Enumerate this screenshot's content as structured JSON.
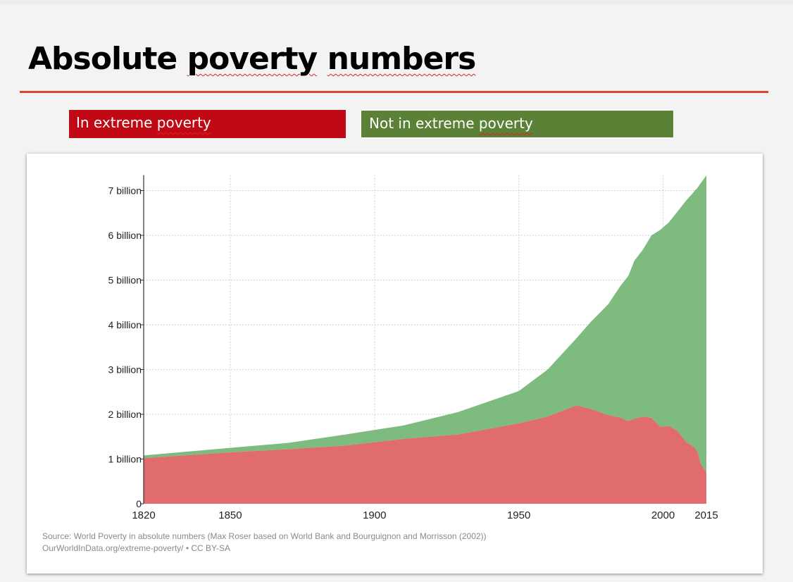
{
  "slide": {
    "title_words": [
      "Absolute",
      "poverty",
      "numbers"
    ],
    "legend": [
      {
        "label_words": [
          "In extreme",
          "poverty"
        ],
        "color": "#c00914"
      },
      {
        "label_words": [
          "Not in extreme",
          "poverty"
        ],
        "color": "#5a8136"
      }
    ]
  },
  "chart_data": {
    "type": "area",
    "title": "Absolute poverty numbers",
    "xlabel": "",
    "ylabel": "",
    "xlim": [
      1820,
      2015
    ],
    "ylim": [
      0,
      7.3
    ],
    "x_ticks": [
      1820,
      1850,
      1900,
      1950,
      2000,
      2015
    ],
    "x_tick_labels": [
      "1820",
      "1850",
      "1900",
      "1950",
      "2000",
      "2015"
    ],
    "y_ticks": [
      0,
      1,
      2,
      3,
      4,
      5,
      6,
      7
    ],
    "y_tick_labels": [
      "0",
      "1 billion",
      "2 billion",
      "3 billion",
      "4 billion",
      "5 billion",
      "6 billion",
      "7 billion"
    ],
    "grid": true,
    "stacked": true,
    "series": [
      {
        "name": "In extreme poverty",
        "color": "#e06c6e",
        "points": [
          [
            1820,
            1.02
          ],
          [
            1850,
            1.15
          ],
          [
            1870,
            1.22
          ],
          [
            1890,
            1.3
          ],
          [
            1910,
            1.45
          ],
          [
            1929,
            1.55
          ],
          [
            1950,
            1.8
          ],
          [
            1960,
            1.95
          ],
          [
            1970,
            2.2
          ],
          [
            1975,
            2.12
          ],
          [
            1981,
            1.98
          ],
          [
            1985,
            1.93
          ],
          [
            1988,
            1.85
          ],
          [
            1990,
            1.9
          ],
          [
            1993,
            1.95
          ],
          [
            1996,
            1.92
          ],
          [
            1999,
            1.72
          ],
          [
            2002,
            1.74
          ],
          [
            2005,
            1.63
          ],
          [
            2008,
            1.38
          ],
          [
            2010,
            1.3
          ],
          [
            2011,
            1.25
          ],
          [
            2012,
            1.15
          ],
          [
            2013,
            0.9
          ],
          [
            2015,
            0.7
          ]
        ]
      },
      {
        "name": "Not in extreme poverty",
        "color": "#7dbb7e",
        "points": [
          [
            1820,
            0.06
          ],
          [
            1850,
            0.1
          ],
          [
            1870,
            0.14
          ],
          [
            1890,
            0.25
          ],
          [
            1910,
            0.3
          ],
          [
            1929,
            0.5
          ],
          [
            1950,
            0.72
          ],
          [
            1960,
            1.05
          ],
          [
            1970,
            1.5
          ],
          [
            1975,
            1.95
          ],
          [
            1981,
            2.48
          ],
          [
            1985,
            2.92
          ],
          [
            1988,
            3.25
          ],
          [
            1990,
            3.53
          ],
          [
            1993,
            3.73
          ],
          [
            1996,
            4.08
          ],
          [
            1999,
            4.4
          ],
          [
            2002,
            4.55
          ],
          [
            2005,
            4.9
          ],
          [
            2008,
            5.4
          ],
          [
            2010,
            5.62
          ],
          [
            2011,
            5.75
          ],
          [
            2012,
            5.92
          ],
          [
            2013,
            6.26
          ],
          [
            2015,
            6.64
          ]
        ]
      }
    ],
    "source_lines": [
      "Source: World Poverty in absolute numbers (Max Roser based on World Bank and Bourguignon and Morrisson (2002))",
      "OurWorldInData.org/extreme-poverty/ • CC BY-SA"
    ]
  }
}
